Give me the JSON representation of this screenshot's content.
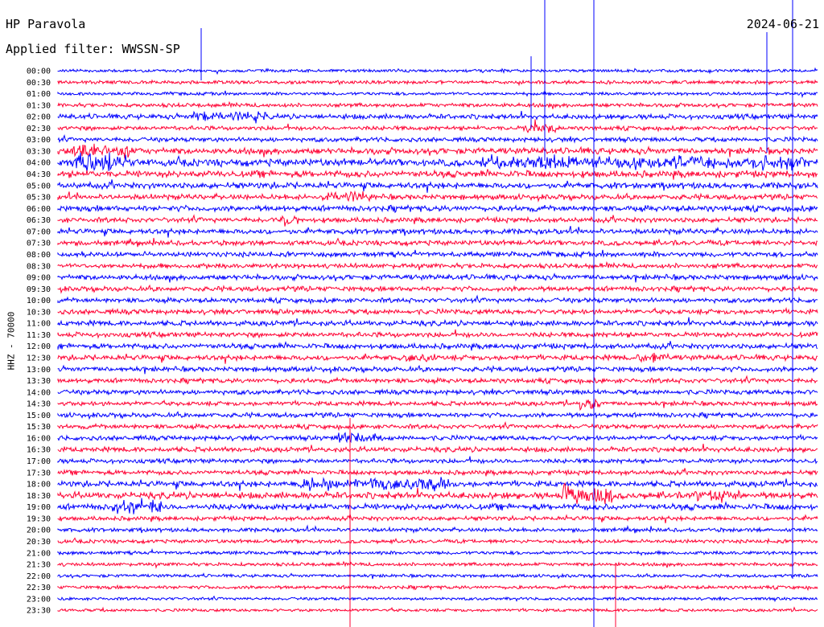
{
  "header": {
    "title": "HP Paravola",
    "filter": "Applied filter: WWSSN-SP",
    "date": "2024-06-21"
  },
  "chart_data": {
    "type": "line",
    "title": "HP Paravola",
    "subtitle": "Applied filter: WWSSN-SP",
    "date": "2024-06-21",
    "ylabel": "HHZ - 70000",
    "xlabel": "",
    "grid": false,
    "colors": {
      "even_trace": "#0000ff",
      "odd_trace": "#ff0033"
    },
    "rows": [
      "00:00",
      "00:30",
      "01:00",
      "01:30",
      "02:00",
      "02:30",
      "03:00",
      "03:30",
      "04:00",
      "04:30",
      "05:00",
      "05:30",
      "06:00",
      "06:30",
      "07:00",
      "07:30",
      "08:00",
      "08:30",
      "09:00",
      "09:30",
      "10:00",
      "10:30",
      "11:00",
      "11:30",
      "12:00",
      "12:30",
      "13:00",
      "13:30",
      "14:00",
      "14:30",
      "15:00",
      "15:30",
      "16:00",
      "16:30",
      "17:00",
      "17:30",
      "18:00",
      "18:30",
      "19:00",
      "19:30",
      "20:00",
      "20:30",
      "21:00",
      "21:30",
      "22:00",
      "22:30",
      "23:00",
      "23:30"
    ],
    "row_activity": [
      0.15,
      0.25,
      0.2,
      0.35,
      0.55,
      0.4,
      0.45,
      0.8,
      0.95,
      0.85,
      0.75,
      0.6,
      0.7,
      0.55,
      0.6,
      0.55,
      0.55,
      0.5,
      0.6,
      0.55,
      0.5,
      0.55,
      0.6,
      0.55,
      0.6,
      0.6,
      0.55,
      0.5,
      0.5,
      0.45,
      0.5,
      0.45,
      0.5,
      0.55,
      0.45,
      0.45,
      0.7,
      0.85,
      0.75,
      0.4,
      0.35,
      0.3,
      0.25,
      0.25,
      0.2,
      0.25,
      0.15,
      0.15
    ]
  }
}
